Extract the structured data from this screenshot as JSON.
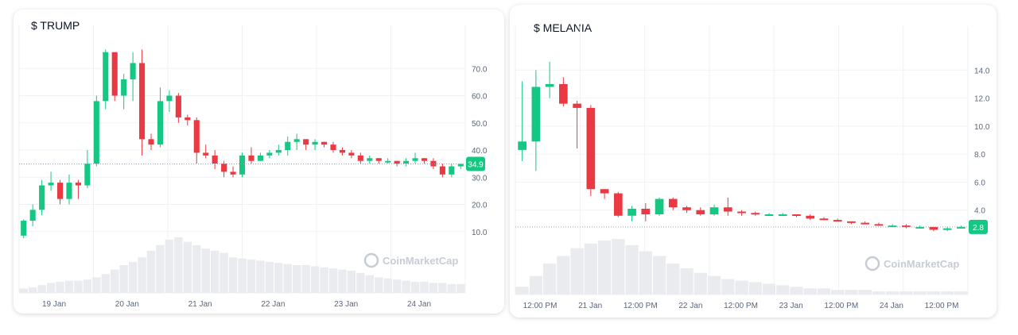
{
  "colors": {
    "up": "#16c784",
    "down": "#ea3943",
    "grid": "#eff2f5",
    "volume": "#e9ebef",
    "axis_text": "#58667e",
    "watermark": "#c7ccd4"
  },
  "chart_data": [
    {
      "type": "candlestick",
      "title": "$ TRUMP",
      "watermark": "CoinMarketCap",
      "y_ticks": [
        "10.0",
        "20.0",
        "30.0",
        "40.0",
        "50.0",
        "60.0",
        "70.0"
      ],
      "ylim": [
        0,
        80
      ],
      "x_labels": [
        "19 Jan",
        "20 Jan",
        "21 Jan",
        "22 Jan",
        "23 Jan",
        "24 Jan"
      ],
      "last_price": "34.9",
      "last_price_value": 34.9,
      "grid": true,
      "candles": [
        [
          8.5,
          14,
          7.5,
          14.5
        ],
        [
          14,
          18,
          12,
          20
        ],
        [
          18,
          27,
          16,
          29
        ],
        [
          27,
          28,
          25,
          32
        ],
        [
          28,
          22,
          20,
          29
        ],
        [
          22,
          28,
          20,
          31
        ],
        [
          28,
          27,
          22,
          29
        ],
        [
          27,
          35,
          26,
          40
        ],
        [
          35,
          58,
          34,
          60
        ],
        [
          58,
          76,
          55,
          77
        ],
        [
          76,
          60,
          58,
          76
        ],
        [
          60,
          66,
          55,
          68
        ],
        [
          66,
          72,
          58,
          76
        ],
        [
          72,
          44,
          38,
          77
        ],
        [
          44,
          42,
          40,
          46
        ],
        [
          42,
          58,
          41,
          63
        ],
        [
          58,
          60,
          54,
          62
        ],
        [
          60,
          52,
          50,
          61
        ],
        [
          52,
          51,
          49,
          53
        ],
        [
          51,
          39,
          35,
          52
        ],
        [
          39,
          38,
          37,
          42
        ],
        [
          38,
          35,
          33,
          40
        ],
        [
          35,
          32,
          30,
          36
        ],
        [
          32,
          31,
          30,
          34
        ],
        [
          31,
          38,
          30,
          39
        ],
        [
          38,
          36,
          35,
          41
        ],
        [
          36,
          38,
          36,
          39
        ],
        [
          38,
          39,
          37,
          40
        ],
        [
          39,
          40,
          38,
          42
        ],
        [
          40,
          43,
          38,
          45
        ],
        [
          43,
          44,
          40,
          46
        ],
        [
          44,
          42,
          40,
          44
        ],
        [
          42,
          43,
          40,
          44
        ],
        [
          43,
          42,
          41,
          43
        ],
        [
          42,
          40,
          39,
          43
        ],
        [
          40,
          39,
          38,
          41
        ],
        [
          39,
          38,
          37,
          40
        ],
        [
          38,
          36,
          35,
          39
        ],
        [
          36,
          37,
          35,
          38
        ],
        [
          37,
          36,
          35,
          37
        ],
        [
          36,
          36,
          35,
          37
        ],
        [
          36,
          35,
          34,
          36
        ],
        [
          35,
          36,
          34,
          37
        ],
        [
          36,
          37,
          35,
          39
        ],
        [
          37,
          36,
          35,
          37
        ],
        [
          36,
          34,
          33,
          37
        ],
        [
          34,
          31,
          30,
          35
        ],
        [
          31,
          34,
          30,
          35
        ],
        [
          34,
          34.9,
          33,
          35
        ]
      ],
      "volumes": [
        4,
        5,
        7,
        9,
        10,
        11,
        11,
        12,
        14,
        17,
        21,
        25,
        28,
        32,
        38,
        43,
        48,
        50,
        46,
        43,
        40,
        38,
        36,
        32,
        31,
        30,
        29,
        28,
        27,
        26,
        25,
        25,
        24,
        23,
        22,
        21,
        20,
        18,
        16,
        14,
        13,
        12,
        11,
        10,
        10,
        9,
        9,
        8,
        8
      ]
    },
    {
      "type": "candlestick",
      "title": "$ MELANIA",
      "watermark": "CoinMarketCap",
      "y_ticks": [
        "4.0",
        "6.0",
        "8.0",
        "10.0",
        "12.0",
        "14.0"
      ],
      "ylim": [
        2,
        16
      ],
      "x_labels": [
        "12:00 PM",
        "21 Jan",
        "12:00 PM",
        "22 Jan",
        "12:00 PM",
        "23 Jan",
        "12:00 PM",
        "24 Jan",
        "12:00 PM"
      ],
      "last_price": "2.8",
      "last_price_value": 2.8,
      "grid": true,
      "candles": [
        [
          8.3,
          8.9,
          7.5,
          13.2
        ],
        [
          8.9,
          12.8,
          6.8,
          14.0
        ],
        [
          12.8,
          13.0,
          12.0,
          14.6
        ],
        [
          13.0,
          11.6,
          11.4,
          13.5
        ],
        [
          11.6,
          11.3,
          8.4,
          11.8
        ],
        [
          11.3,
          5.5,
          5.0,
          11.5
        ],
        [
          5.5,
          5.2,
          4.8,
          5.5
        ],
        [
          5.2,
          3.6,
          3.5,
          5.3
        ],
        [
          3.6,
          4.1,
          3.2,
          4.3
        ],
        [
          4.1,
          3.7,
          3.2,
          4.5
        ],
        [
          3.7,
          4.8,
          3.6,
          4.9
        ],
        [
          4.8,
          4.2,
          4.0,
          4.9
        ],
        [
          4.2,
          4.0,
          3.8,
          4.3
        ],
        [
          4.0,
          3.7,
          3.6,
          4.2
        ],
        [
          3.7,
          4.2,
          3.6,
          4.4
        ],
        [
          4.2,
          3.9,
          3.6,
          4.9
        ],
        [
          3.9,
          3.8,
          3.6,
          4.0
        ],
        [
          3.8,
          3.7,
          3.6,
          3.9
        ],
        [
          3.7,
          3.7,
          3.6,
          3.8
        ],
        [
          3.7,
          3.7,
          3.6,
          3.8
        ],
        [
          3.7,
          3.6,
          3.5,
          3.7
        ],
        [
          3.6,
          3.4,
          3.3,
          3.7
        ],
        [
          3.4,
          3.3,
          3.3,
          3.5
        ],
        [
          3.3,
          3.2,
          3.2,
          3.4
        ],
        [
          3.2,
          3.1,
          3.0,
          3.2
        ],
        [
          3.1,
          3.0,
          3.0,
          3.2
        ],
        [
          3.0,
          2.9,
          2.9,
          3.1
        ],
        [
          2.9,
          2.9,
          2.8,
          3.0
        ],
        [
          2.9,
          2.8,
          2.7,
          3.0
        ],
        [
          2.8,
          2.8,
          2.7,
          2.9
        ],
        [
          2.8,
          2.6,
          2.5,
          2.8
        ],
        [
          2.6,
          2.7,
          2.5,
          2.8
        ],
        [
          2.7,
          2.8,
          2.7,
          2.9
        ]
      ],
      "volumes": [
        5,
        12,
        20,
        25,
        30,
        33,
        35,
        36,
        32,
        28,
        25,
        20,
        17,
        14,
        12,
        10,
        9,
        8,
        7,
        6,
        5,
        4,
        4,
        3,
        3,
        3,
        2,
        2,
        2,
        2,
        2,
        2,
        2
      ]
    }
  ]
}
